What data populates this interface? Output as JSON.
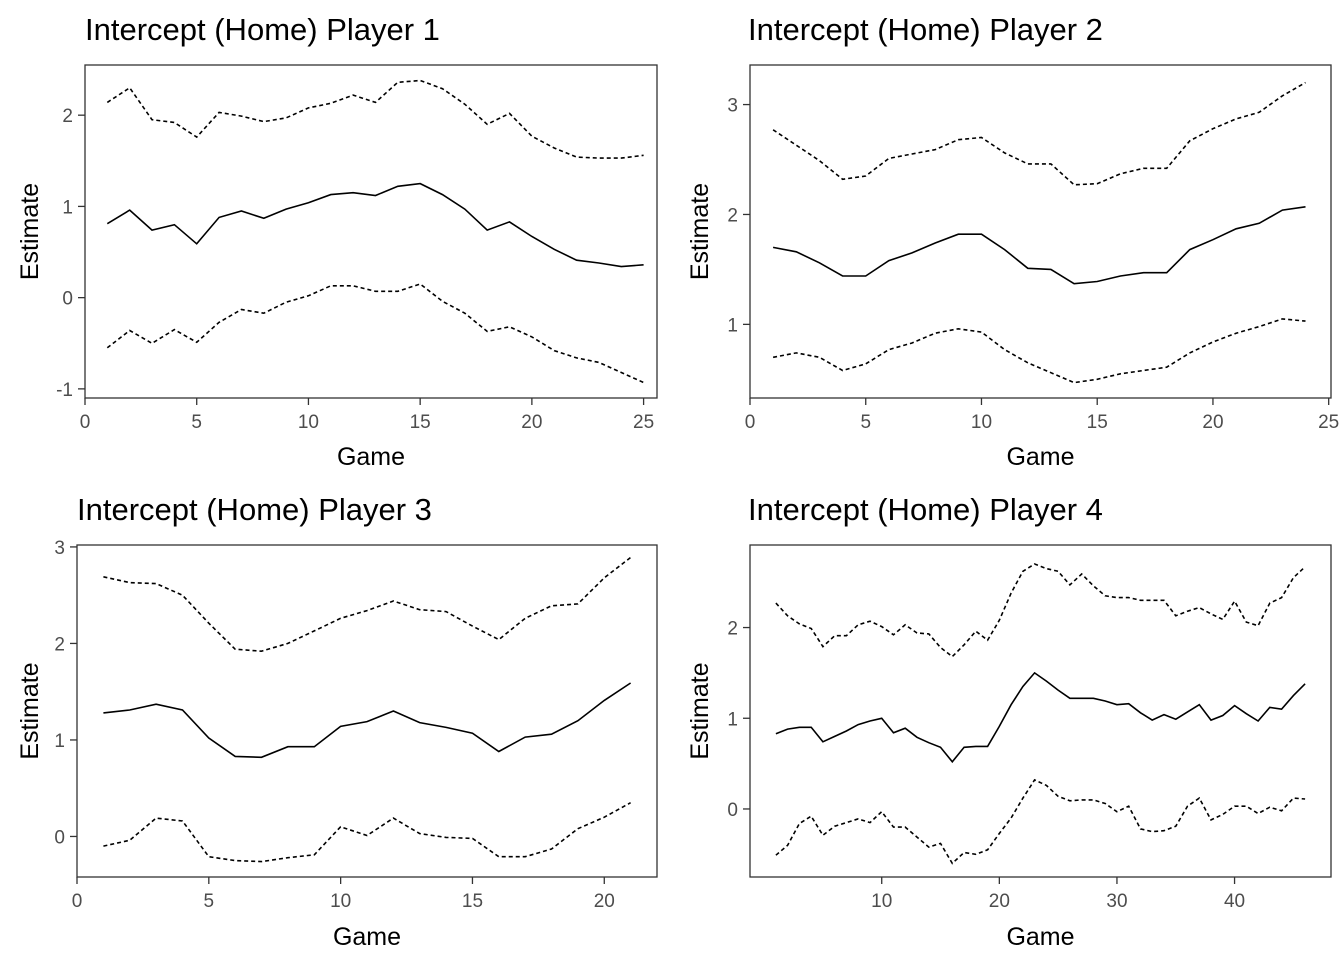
{
  "chart_data": [
    {
      "type": "line",
      "title": "Intercept (Home) Player 1",
      "xlabel": "Game",
      "ylabel": "Estimate",
      "xlim": [
        0,
        25.6
      ],
      "ylim": [
        -1.1,
        2.55
      ],
      "xticks": [
        0,
        5,
        10,
        15,
        20,
        25
      ],
      "yticks": [
        -1,
        0,
        1,
        2
      ],
      "grid": false,
      "legend": "none",
      "x": [
        1,
        2,
        3,
        4,
        5,
        6,
        7,
        8,
        9,
        10,
        11,
        12,
        13,
        14,
        15,
        16,
        17,
        18,
        19,
        20,
        21,
        22,
        23,
        24,
        25
      ],
      "series": [
        {
          "role": "estimate",
          "style": "solid",
          "values": [
            0.81,
            0.96,
            0.74,
            0.8,
            0.59,
            0.88,
            0.95,
            0.87,
            0.97,
            1.04,
            1.13,
            1.15,
            1.12,
            1.22,
            1.25,
            1.13,
            0.97,
            0.74,
            0.83,
            0.67,
            0.53,
            0.41,
            0.38,
            0.34,
            0.36
          ]
        },
        {
          "role": "upper",
          "style": "dashed",
          "values": [
            2.14,
            2.3,
            1.95,
            1.92,
            1.76,
            2.03,
            1.99,
            1.93,
            1.97,
            2.08,
            2.13,
            2.22,
            2.14,
            2.36,
            2.38,
            2.29,
            2.12,
            1.9,
            2.02,
            1.77,
            1.64,
            1.54,
            1.53,
            1.53,
            1.56
          ]
        },
        {
          "role": "lower",
          "style": "dashed",
          "values": [
            -0.55,
            -0.36,
            -0.5,
            -0.35,
            -0.49,
            -0.27,
            -0.13,
            -0.17,
            -0.05,
            0.02,
            0.13,
            0.13,
            0.07,
            0.07,
            0.15,
            -0.04,
            -0.17,
            -0.37,
            -0.32,
            -0.43,
            -0.58,
            -0.66,
            -0.71,
            -0.82,
            -0.93
          ]
        }
      ]
    },
    {
      "type": "line",
      "title": "Intercept (Home) Player 2",
      "xlabel": "Game",
      "ylabel": "Estimate",
      "xlim": [
        0,
        25.1
      ],
      "ylim": [
        0.33,
        3.36
      ],
      "xticks": [
        0,
        5,
        10,
        15,
        20,
        25
      ],
      "yticks": [
        1,
        2,
        3
      ],
      "grid": false,
      "legend": "none",
      "x": [
        1,
        2,
        3,
        4,
        5,
        6,
        7,
        8,
        9,
        10,
        11,
        12,
        13,
        14,
        15,
        16,
        17,
        18,
        19,
        20,
        21,
        22,
        23,
        24
      ],
      "series": [
        {
          "role": "estimate",
          "style": "solid",
          "values": [
            1.7,
            1.66,
            1.56,
            1.44,
            1.44,
            1.58,
            1.65,
            1.74,
            1.82,
            1.82,
            1.68,
            1.51,
            1.5,
            1.37,
            1.39,
            1.44,
            1.47,
            1.47,
            1.68,
            1.77,
            1.87,
            1.92,
            2.04,
            2.07
          ]
        },
        {
          "role": "upper",
          "style": "dashed",
          "values": [
            2.77,
            2.63,
            2.49,
            2.32,
            2.35,
            2.51,
            2.55,
            2.59,
            2.68,
            2.7,
            2.56,
            2.46,
            2.46,
            2.27,
            2.28,
            2.37,
            2.42,
            2.42,
            2.67,
            2.78,
            2.87,
            2.93,
            3.08,
            3.2
          ]
        },
        {
          "role": "lower",
          "style": "dashed",
          "values": [
            0.7,
            0.74,
            0.7,
            0.58,
            0.64,
            0.77,
            0.83,
            0.92,
            0.96,
            0.93,
            0.77,
            0.65,
            0.56,
            0.47,
            0.5,
            0.55,
            0.58,
            0.61,
            0.74,
            0.84,
            0.92,
            0.98,
            1.05,
            1.03
          ]
        }
      ]
    },
    {
      "type": "line",
      "title": "Intercept (Home) Player 3",
      "xlabel": "Game",
      "ylabel": "Estimate",
      "xlim": [
        0,
        22
      ],
      "ylim": [
        -0.42,
        3.02
      ],
      "xticks": [
        0,
        5,
        10,
        15,
        20
      ],
      "yticks": [
        0,
        1,
        2,
        3
      ],
      "grid": false,
      "legend": "none",
      "x": [
        1,
        2,
        3,
        4,
        5,
        6,
        7,
        8,
        9,
        10,
        11,
        12,
        13,
        14,
        15,
        16,
        17,
        18,
        19,
        20,
        21
      ],
      "series": [
        {
          "role": "estimate",
          "style": "solid",
          "values": [
            1.28,
            1.31,
            1.37,
            1.31,
            1.02,
            0.83,
            0.82,
            0.93,
            0.93,
            1.14,
            1.19,
            1.3,
            1.18,
            1.13,
            1.07,
            0.88,
            1.03,
            1.06,
            1.2,
            1.41,
            1.59
          ]
        },
        {
          "role": "upper",
          "style": "dashed",
          "values": [
            2.69,
            2.63,
            2.62,
            2.5,
            2.21,
            1.94,
            1.92,
            2.0,
            2.13,
            2.26,
            2.34,
            2.44,
            2.35,
            2.33,
            2.18,
            2.04,
            2.26,
            2.39,
            2.41,
            2.68,
            2.89
          ]
        },
        {
          "role": "lower",
          "style": "dashed",
          "values": [
            -0.1,
            -0.04,
            0.19,
            0.16,
            -0.21,
            -0.25,
            -0.26,
            -0.22,
            -0.19,
            0.1,
            0.01,
            0.19,
            0.03,
            -0.01,
            -0.02,
            -0.21,
            -0.21,
            -0.13,
            0.08,
            0.2,
            0.35
          ]
        }
      ]
    },
    {
      "type": "line",
      "title": "Intercept (Home) Player 4",
      "xlabel": "Game",
      "ylabel": "Estimate",
      "xlim": [
        -1.2,
        48.2
      ],
      "ylim": [
        -0.75,
        2.91
      ],
      "xticks": [
        10,
        20,
        30,
        40
      ],
      "yticks": [
        0,
        1,
        2
      ],
      "grid": false,
      "legend": "none",
      "x": [
        1,
        2,
        3,
        4,
        5,
        6,
        7,
        8,
        9,
        10,
        11,
        12,
        13,
        14,
        15,
        16,
        17,
        18,
        19,
        20,
        21,
        22,
        23,
        24,
        25,
        26,
        27,
        28,
        29,
        30,
        31,
        32,
        33,
        34,
        35,
        36,
        37,
        38,
        39,
        40,
        41,
        42,
        43,
        44,
        45,
        46
      ],
      "series": [
        {
          "role": "estimate",
          "style": "solid",
          "values": [
            0.83,
            0.88,
            0.9,
            0.9,
            0.74,
            0.8,
            0.86,
            0.93,
            0.97,
            1.0,
            0.84,
            0.89,
            0.79,
            0.73,
            0.68,
            0.52,
            0.68,
            0.69,
            0.69,
            0.91,
            1.15,
            1.35,
            1.5,
            1.41,
            1.31,
            1.22,
            1.22,
            1.22,
            1.19,
            1.15,
            1.16,
            1.06,
            0.98,
            1.04,
            0.99,
            1.07,
            1.15,
            0.98,
            1.03,
            1.14,
            1.05,
            0.97,
            1.12,
            1.1,
            1.25,
            1.38
          ]
        },
        {
          "role": "upper",
          "style": "dashed",
          "values": [
            2.27,
            2.13,
            2.04,
            1.99,
            1.79,
            1.91,
            1.91,
            2.03,
            2.07,
            2.01,
            1.92,
            2.03,
            1.94,
            1.93,
            1.78,
            1.68,
            1.81,
            1.96,
            1.86,
            2.08,
            2.38,
            2.62,
            2.7,
            2.65,
            2.62,
            2.47,
            2.59,
            2.46,
            2.35,
            2.33,
            2.33,
            2.3,
            2.3,
            2.3,
            2.13,
            2.18,
            2.22,
            2.15,
            2.09,
            2.29,
            2.06,
            2.02,
            2.27,
            2.33,
            2.55,
            2.67
          ]
        },
        {
          "role": "lower",
          "style": "dashed",
          "values": [
            -0.51,
            -0.4,
            -0.16,
            -0.08,
            -0.29,
            -0.19,
            -0.15,
            -0.11,
            -0.15,
            -0.03,
            -0.2,
            -0.2,
            -0.31,
            -0.42,
            -0.38,
            -0.6,
            -0.48,
            -0.5,
            -0.45,
            -0.27,
            -0.1,
            0.12,
            0.32,
            0.26,
            0.14,
            0.09,
            0.1,
            0.1,
            0.06,
            -0.03,
            0.03,
            -0.22,
            -0.25,
            -0.24,
            -0.19,
            0.03,
            0.12,
            -0.12,
            -0.06,
            0.03,
            0.03,
            -0.05,
            0.02,
            -0.02,
            0.12,
            0.11
          ]
        }
      ]
    }
  ]
}
